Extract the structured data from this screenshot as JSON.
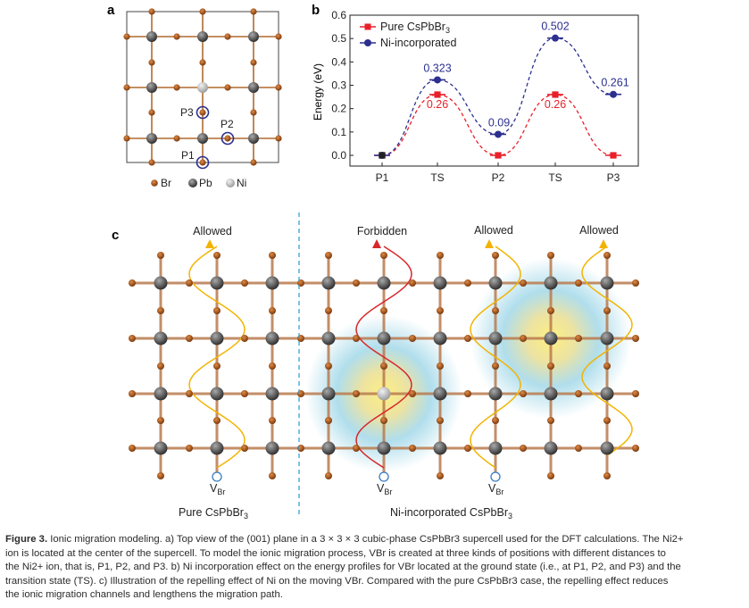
{
  "panel_a": {
    "label": "a",
    "site_labels": [
      "P3",
      "P2",
      "P1"
    ],
    "legend": [
      {
        "name": "Br",
        "color": "#a0521c"
      },
      {
        "name": "Pb",
        "color": "#555555"
      },
      {
        "name": "Ni",
        "color": "#c0c0c0"
      }
    ]
  },
  "chart_data": {
    "type": "line",
    "panel_label": "b",
    "categories": [
      "P1",
      "TS",
      "P2",
      "TS",
      "P3"
    ],
    "ylabel": "Energy (eV)",
    "ylim": [
      0.0,
      0.6
    ],
    "yticks": [
      "0.0",
      "0.1",
      "0.2",
      "0.3",
      "0.4",
      "0.5",
      "0.6"
    ],
    "legend_position": "top-left",
    "series": [
      {
        "name": "Pure CsPbBr3",
        "color": "#e8202a",
        "values": [
          0.0,
          0.26,
          0.0,
          0.26,
          0.0
        ],
        "point_labels": [
          "",
          "0.26",
          "",
          "0.26",
          ""
        ]
      },
      {
        "name": "Ni-incorporated",
        "color": "#2b2f8f",
        "values": [
          0.0,
          0.323,
          0.09,
          0.502,
          0.261
        ],
        "point_labels": [
          "",
          "0.323",
          "0.09",
          "0.502",
          "0.261"
        ]
      }
    ]
  },
  "panel_c": {
    "label": "c",
    "pure_title": "Pure CsPbBr3",
    "ni_title": "Ni-incorporated CsPbBr3",
    "path_labels": [
      "Allowed",
      "Forbidden",
      "Allowed",
      "Allowed"
    ],
    "vacancy_label": "VBr",
    "colors": {
      "allowed": "#f2b400",
      "forbidden": "#d8262a",
      "glow": "#7cc8e0",
      "divider": "#3aa0d8"
    }
  },
  "caption": {
    "label": "Figure 3.",
    "lines": [
      " Ionic migration modeling. a) Top view of the (001) plane in a 3 × 3 × 3 cubic-phase CsPbBr3 supercell used for the DFT calculations. The Ni2+",
      "ion is located at the center of the supercell. To model the ionic migration process, VBr is created at three kinds of positions with different distances to",
      "the Ni2+ ion, that is, P1, P2, and P3. b) Ni incorporation effect on the energy profiles for VBr located at the ground state (i.e., at P1, P2, and P3) and the",
      "transition state (TS). c) Illustration of the repelling effect of Ni on the moving VBr. Compared with the pure CsPbBr3 case, the repelling effect reduces",
      "the ionic migration channels and lengthens the migration path."
    ]
  }
}
